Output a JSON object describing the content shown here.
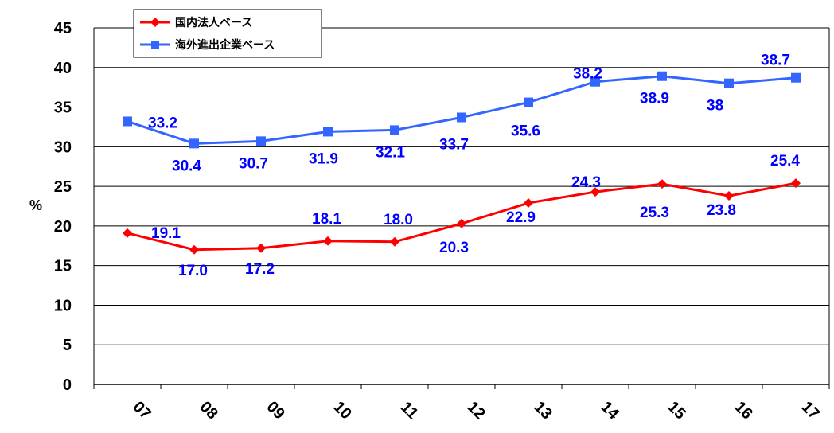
{
  "chart_data": {
    "type": "line",
    "ylabel": "%",
    "ylim": [
      0,
      45
    ],
    "yticks": [
      "0",
      "5",
      "10",
      "15",
      "20",
      "25",
      "30",
      "35",
      "40",
      "45"
    ],
    "categories": [
      "07",
      "08",
      "09",
      "10",
      "11",
      "12",
      "13",
      "14",
      "15",
      "16",
      "17"
    ],
    "grid": true,
    "legend_position": "top-left",
    "series": [
      {
        "name": "国内法人ベース",
        "color": "#ff0000",
        "marker": "diamond",
        "values": [
          19.1,
          17.0,
          17.2,
          18.1,
          18.0,
          20.3,
          22.9,
          24.3,
          25.3,
          23.8,
          25.4
        ],
        "labels": [
          "19.1",
          "17.0",
          "17.2",
          "18.1",
          "18.0",
          "20.3",
          "22.9",
          "24.3",
          "25.3",
          "23.8",
          "25.4"
        ]
      },
      {
        "name": "海外進出企業ベース",
        "color": "#3366ff",
        "marker": "square",
        "values": [
          33.2,
          30.4,
          30.7,
          31.9,
          32.1,
          33.7,
          35.6,
          38.2,
          38.9,
          38.0,
          38.7
        ],
        "labels": [
          "33.2",
          "30.4",
          "30.7",
          "31.9",
          "32.1",
          "33.7",
          "35.6",
          "38.2",
          "38.9",
          "38",
          "38.7"
        ]
      }
    ],
    "label_color": "#0000ff"
  }
}
